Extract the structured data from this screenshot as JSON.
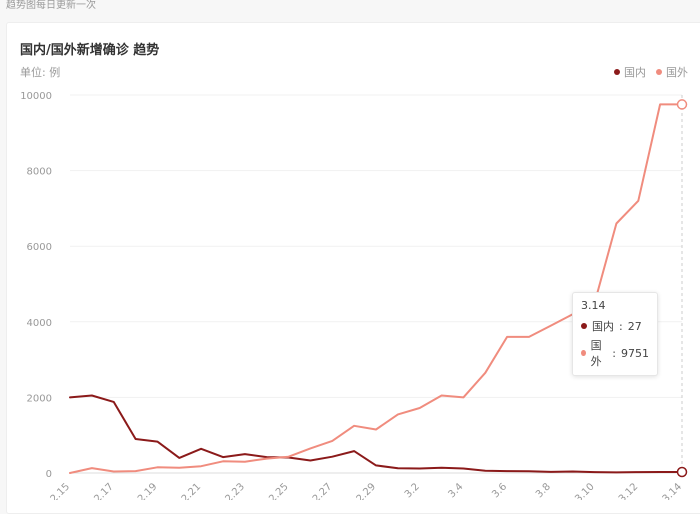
{
  "page": {
    "note": "趋势图每日更新一次"
  },
  "chart_data": {
    "type": "line",
    "title": "国内/国外新增确诊 趋势",
    "unit_label": "单位: 例",
    "ylim": [
      0,
      10000
    ],
    "y_ticks": [
      0,
      2000,
      4000,
      6000,
      8000,
      10000
    ],
    "x": [
      "2.15",
      "2.16",
      "2.17",
      "2.18",
      "2.19",
      "2.20",
      "2.21",
      "2.22",
      "2.23",
      "2.24",
      "2.25",
      "2.26",
      "2.27",
      "2.28",
      "2.29",
      "3.1",
      "3.2",
      "3.3",
      "3.4",
      "3.5",
      "3.6",
      "3.7",
      "3.8",
      "3.9",
      "3.10",
      "3.11",
      "3.12",
      "3.13",
      "3.14"
    ],
    "x_tick_labels": [
      "2.15",
      "2.17",
      "2.19",
      "2.21",
      "2.23",
      "2.25",
      "2.27",
      "2.29",
      "3.2",
      "3.4",
      "3.6",
      "3.8",
      "3.10",
      "3.12",
      "3.14"
    ],
    "grid": true,
    "legend_position": "top-right",
    "series": [
      {
        "name": "国内",
        "color": "#8b1a1a",
        "values": [
          2000,
          2050,
          1880,
          900,
          830,
          400,
          640,
          420,
          500,
          420,
          410,
          330,
          430,
          580,
          200,
          125,
          120,
          140,
          120,
          60,
          50,
          45,
          30,
          40,
          25,
          15,
          25,
          27,
          27
        ]
      },
      {
        "name": "国外",
        "color": "#f08c7e",
        "values": [
          0,
          130,
          40,
          50,
          150,
          140,
          180,
          310,
          300,
          380,
          430,
          650,
          850,
          1250,
          1150,
          1550,
          1720,
          2050,
          2000,
          2650,
          3600,
          3600,
          3900,
          4200,
          4500,
          6600,
          7200,
          9751,
          9751
        ]
      }
    ],
    "tooltip": {
      "title": "3.14",
      "rows": [
        {
          "label": "国内",
          "value": 27,
          "color": "#8b1a1a"
        },
        {
          "label": "国外",
          "value": 9751,
          "color": "#f08c7e"
        }
      ]
    }
  }
}
